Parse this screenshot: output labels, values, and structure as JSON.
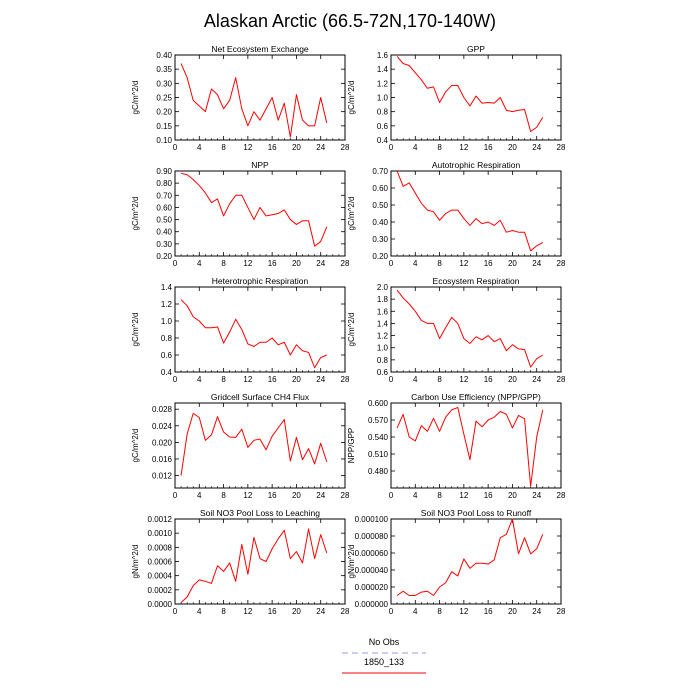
{
  "figure": {
    "title": "Alaskan Arctic (66.5-72N,170-140W)"
  },
  "legend": {
    "items": [
      {
        "label": "No Obs",
        "color": "#9a9aee",
        "style": "dashed"
      },
      {
        "label": "1850_133",
        "color": "#ff0000",
        "style": "solid"
      }
    ]
  },
  "chart_data": [
    {
      "type": "line",
      "title": "Net Ecosystem Exchange",
      "ylabel": "gC/m^2/d",
      "xlim": [
        0,
        28
      ],
      "xticks": [
        "0",
        "4",
        "8",
        "12",
        "16",
        "20",
        "24",
        "28"
      ],
      "ylim": [
        0.1,
        0.4
      ],
      "yticks": [
        "0.10",
        "0.15",
        "0.20",
        "0.25",
        "0.30",
        "0.35",
        "0.40"
      ],
      "series": [
        {
          "color": "#ff0000",
          "x": [
            1,
            2,
            3,
            4,
            5,
            6,
            7,
            8,
            9,
            10,
            11,
            12,
            13,
            14,
            15,
            16,
            17,
            18,
            19,
            20,
            21,
            22,
            23,
            24,
            25
          ],
          "y": [
            0.37,
            0.32,
            0.24,
            0.22,
            0.2,
            0.28,
            0.26,
            0.21,
            0.24,
            0.32,
            0.21,
            0.15,
            0.2,
            0.17,
            0.21,
            0.25,
            0.17,
            0.23,
            0.11,
            0.26,
            0.17,
            0.15,
            0.15,
            0.25,
            0.16
          ]
        }
      ]
    },
    {
      "type": "line",
      "title": "GPP",
      "ylabel": "gC/m^2/d",
      "xlim": [
        0,
        28
      ],
      "xticks": [
        "0",
        "4",
        "8",
        "12",
        "16",
        "20",
        "24",
        "28"
      ],
      "ylim": [
        0.4,
        1.6
      ],
      "yticks": [
        "0.4",
        "0.6",
        "0.8",
        "1.0",
        "1.2",
        "1.4",
        "1.6"
      ],
      "series": [
        {
          "color": "#ff0000",
          "x": [
            1,
            2,
            3,
            4,
            5,
            6,
            7,
            8,
            9,
            10,
            11,
            12,
            13,
            14,
            15,
            16,
            17,
            18,
            19,
            20,
            21,
            22,
            23,
            24,
            25
          ],
          "y": [
            1.58,
            1.48,
            1.45,
            1.35,
            1.25,
            1.13,
            1.15,
            0.93,
            1.08,
            1.17,
            1.17,
            1.0,
            0.88,
            1.02,
            0.92,
            0.93,
            0.92,
            1.0,
            0.82,
            0.8,
            0.82,
            0.83,
            0.52,
            0.58,
            0.72
          ]
        }
      ]
    },
    {
      "type": "line",
      "title": "NPP",
      "ylabel": "gC/m^2/d",
      "xlim": [
        0,
        28
      ],
      "xticks": [
        "0",
        "4",
        "8",
        "12",
        "16",
        "20",
        "24",
        "28"
      ],
      "ylim": [
        0.2,
        0.9
      ],
      "yticks": [
        "0.20",
        "0.30",
        "0.40",
        "0.50",
        "0.60",
        "0.70",
        "0.80",
        "0.90"
      ],
      "series": [
        {
          "color": "#ff0000",
          "x": [
            1,
            2,
            3,
            4,
            5,
            6,
            7,
            8,
            9,
            10,
            11,
            12,
            13,
            14,
            15,
            16,
            17,
            18,
            19,
            20,
            21,
            22,
            23,
            24,
            25
          ],
          "y": [
            0.88,
            0.87,
            0.83,
            0.78,
            0.72,
            0.64,
            0.67,
            0.53,
            0.63,
            0.7,
            0.7,
            0.6,
            0.5,
            0.6,
            0.53,
            0.54,
            0.55,
            0.58,
            0.5,
            0.46,
            0.49,
            0.49,
            0.28,
            0.32,
            0.44
          ]
        }
      ]
    },
    {
      "type": "line",
      "title": "Autotrophic Respiration",
      "ylabel": "gC/m^2/d",
      "xlim": [
        0,
        28
      ],
      "xticks": [
        "0",
        "4",
        "8",
        "12",
        "16",
        "20",
        "24",
        "28"
      ],
      "ylim": [
        0.2,
        0.7
      ],
      "yticks": [
        "0.20",
        "0.30",
        "0.40",
        "0.50",
        "0.60",
        "0.70"
      ],
      "series": [
        {
          "color": "#ff0000",
          "x": [
            1,
            2,
            3,
            4,
            5,
            6,
            7,
            8,
            9,
            10,
            11,
            12,
            13,
            14,
            15,
            16,
            17,
            18,
            19,
            20,
            21,
            22,
            23,
            24,
            25
          ],
          "y": [
            0.7,
            0.61,
            0.63,
            0.57,
            0.51,
            0.47,
            0.46,
            0.41,
            0.45,
            0.47,
            0.47,
            0.42,
            0.38,
            0.42,
            0.39,
            0.4,
            0.38,
            0.41,
            0.34,
            0.35,
            0.34,
            0.34,
            0.23,
            0.26,
            0.28
          ]
        }
      ]
    },
    {
      "type": "line",
      "title": "Heterotrophic Respiration",
      "ylabel": "gC/m^2/d",
      "xlim": [
        0,
        28
      ],
      "xticks": [
        "0",
        "4",
        "8",
        "12",
        "16",
        "20",
        "24",
        "28"
      ],
      "ylim": [
        0.4,
        1.4
      ],
      "yticks": [
        "0.4",
        "0.6",
        "0.8",
        "1.0",
        "1.2",
        "1.4"
      ],
      "series": [
        {
          "color": "#ff0000",
          "x": [
            1,
            2,
            3,
            4,
            5,
            6,
            7,
            8,
            9,
            10,
            11,
            12,
            13,
            14,
            15,
            16,
            17,
            18,
            19,
            20,
            21,
            22,
            23,
            24,
            25
          ],
          "y": [
            1.25,
            1.18,
            1.05,
            1.0,
            0.92,
            0.92,
            0.93,
            0.74,
            0.87,
            1.02,
            0.9,
            0.73,
            0.7,
            0.75,
            0.75,
            0.8,
            0.72,
            0.75,
            0.6,
            0.72,
            0.65,
            0.63,
            0.45,
            0.57,
            0.6
          ]
        }
      ]
    },
    {
      "type": "line",
      "title": "Ecosystem Respiration",
      "ylabel": "gC/m^2/d",
      "xlim": [
        0,
        28
      ],
      "xticks": [
        "0",
        "4",
        "8",
        "12",
        "16",
        "20",
        "24",
        "28"
      ],
      "ylim": [
        0.6,
        2.0
      ],
      "yticks": [
        "0.6",
        "0.8",
        "1.0",
        "1.2",
        "1.4",
        "1.6",
        "1.8",
        "2.0"
      ],
      "series": [
        {
          "color": "#ff0000",
          "x": [
            1,
            2,
            3,
            4,
            5,
            6,
            7,
            8,
            9,
            10,
            11,
            12,
            13,
            14,
            15,
            16,
            17,
            18,
            19,
            20,
            21,
            22,
            23,
            24,
            25
          ],
          "y": [
            1.95,
            1.82,
            1.72,
            1.6,
            1.45,
            1.4,
            1.4,
            1.15,
            1.33,
            1.5,
            1.4,
            1.15,
            1.07,
            1.18,
            1.13,
            1.2,
            1.1,
            1.15,
            0.95,
            1.05,
            0.98,
            0.97,
            0.68,
            0.82,
            0.88
          ]
        }
      ]
    },
    {
      "type": "line",
      "title": "Gridcell Surface CH4 Flux",
      "ylabel": "gC/m^2/d",
      "xlim": [
        0,
        28
      ],
      "xticks": [
        "0",
        "4",
        "8",
        "12",
        "16",
        "20",
        "24",
        "28"
      ],
      "ylim": [
        0.009,
        0.0295
      ],
      "yticks": [
        "0.012",
        "0.016",
        "0.020",
        "0.024",
        "0.028"
      ],
      "series": [
        {
          "color": "#ff0000",
          "x": [
            1,
            2,
            3,
            4,
            5,
            6,
            7,
            8,
            9,
            10,
            11,
            12,
            13,
            14,
            15,
            16,
            17,
            18,
            19,
            20,
            21,
            22,
            23,
            24,
            25
          ],
          "y": [
            0.012,
            0.022,
            0.027,
            0.026,
            0.0205,
            0.0218,
            0.0262,
            0.0225,
            0.0213,
            0.0212,
            0.0232,
            0.0188,
            0.0205,
            0.0208,
            0.0182,
            0.0215,
            0.0235,
            0.0255,
            0.0155,
            0.0212,
            0.0158,
            0.0185,
            0.0148,
            0.0198,
            0.0153
          ]
        }
      ]
    },
    {
      "type": "line",
      "title": "Carbon Use Efficiency (NPP/GPP)",
      "ylabel": "NPP/GPP",
      "xlim": [
        0,
        28
      ],
      "xticks": [
        "0",
        "4",
        "8",
        "12",
        "16",
        "20",
        "24",
        "28"
      ],
      "ylim": [
        0.45,
        0.6
      ],
      "yticks": [
        "0.480",
        "0.510",
        "0.540",
        "0.570",
        "0.600"
      ],
      "series": [
        {
          "color": "#ff0000",
          "x": [
            1,
            2,
            3,
            4,
            5,
            6,
            7,
            8,
            9,
            10,
            11,
            12,
            13,
            14,
            15,
            16,
            17,
            18,
            19,
            20,
            21,
            22,
            23,
            24,
            25
          ],
          "y": [
            0.556,
            0.58,
            0.54,
            0.533,
            0.56,
            0.55,
            0.573,
            0.55,
            0.575,
            0.588,
            0.592,
            0.545,
            0.5,
            0.568,
            0.558,
            0.57,
            0.575,
            0.585,
            0.58,
            0.556,
            0.578,
            0.572,
            0.453,
            0.54,
            0.588
          ]
        }
      ]
    },
    {
      "type": "line",
      "title": "Soil NO3 Pool Loss to Leaching",
      "ylabel": "gN/m^2/d",
      "xlim": [
        0,
        28
      ],
      "xticks": [
        "0",
        "4",
        "8",
        "12",
        "16",
        "20",
        "24",
        "28"
      ],
      "ylim": [
        0,
        0.0012
      ],
      "yticks": [
        "0.0000",
        "0.0002",
        "0.0004",
        "0.0006",
        "0.0008",
        "0.0010",
        "0.0012"
      ],
      "series": [
        {
          "color": "#ff0000",
          "x": [
            1,
            2,
            3,
            4,
            5,
            6,
            7,
            8,
            9,
            10,
            11,
            12,
            13,
            14,
            15,
            16,
            17,
            18,
            19,
            20,
            21,
            22,
            23,
            24,
            25
          ],
          "y": [
            2e-05,
            0.0001,
            0.00026,
            0.00034,
            0.00032,
            0.00029,
            0.00054,
            0.00046,
            0.00058,
            0.00032,
            0.00084,
            0.00042,
            0.00094,
            0.00064,
            0.0006,
            0.00078,
            0.00092,
            0.00104,
            0.00064,
            0.00074,
            0.00058,
            0.00106,
            0.00064,
            0.00098,
            0.00072
          ]
        }
      ]
    },
    {
      "type": "line",
      "title": "Soil NO3 Pool Loss to Runoff",
      "ylabel": "gN/m^2/d",
      "xlim": [
        0,
        28
      ],
      "xticks": [
        "0",
        "4",
        "8",
        "12",
        "16",
        "20",
        "24",
        "28"
      ],
      "ylim": [
        0,
        0.0001
      ],
      "yticks": [
        "0.000000",
        "0.000020",
        "0.000040",
        "0.000060",
        "0.000080",
        "0.000100"
      ],
      "series": [
        {
          "color": "#ff0000",
          "x": [
            1,
            2,
            3,
            4,
            5,
            6,
            7,
            8,
            9,
            10,
            11,
            12,
            13,
            14,
            15,
            16,
            17,
            18,
            19,
            20,
            21,
            22,
            23,
            24,
            25
          ],
          "y": [
            1e-05,
            1.5e-05,
            1e-05,
            1e-05,
            1.4e-05,
            1.5e-05,
            1e-05,
            2e-05,
            2.5e-05,
            3.8e-05,
            3.3e-05,
            5.3e-05,
            4.2e-05,
            4.8e-05,
            4.8e-05,
            4.7e-05,
            5.2e-05,
            7.8e-05,
            8.2e-05,
            0.0001,
            5.9e-05,
            7.8e-05,
            5.9e-05,
            6.5e-05,
            8.2e-05
          ]
        }
      ]
    }
  ]
}
